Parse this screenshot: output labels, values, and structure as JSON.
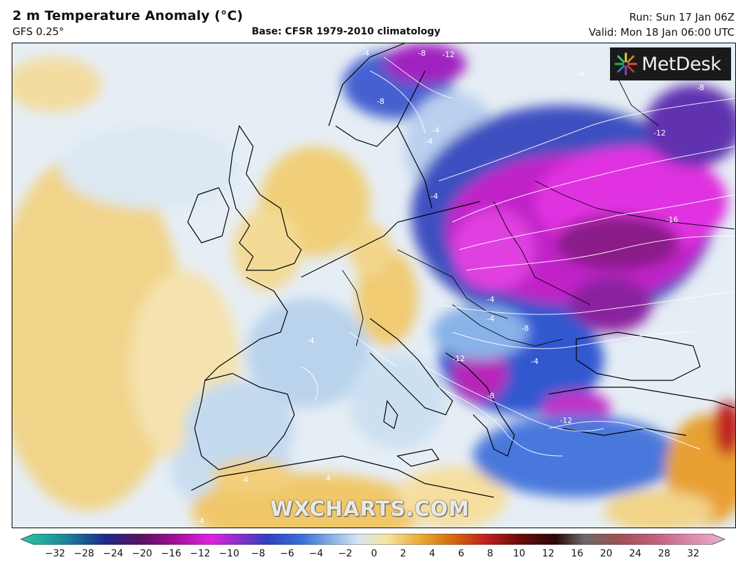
{
  "header": {
    "title": "2 m Temperature Anomaly (°C)",
    "model": "GFS 0.25°",
    "base": "Base: CFSR 1979-2010 climatology",
    "run": "Run: Sun 17 Jan 06Z",
    "valid": "Valid: Mon 18 Jan 06:00 UTC"
  },
  "logo": {
    "text": "MetDesk"
  },
  "watermark": "WXCHARTS.COM",
  "contour_labels": [
    "-4",
    "-8",
    "-12",
    "-4",
    "-8",
    "-8",
    "-4",
    "-4",
    "-4",
    "-12",
    "-16",
    "-4",
    "-4",
    "-8",
    "-4",
    "-12",
    "-8",
    "-12",
    "-4",
    "4",
    "4",
    "-4"
  ],
  "colorbar": {
    "ticks": [
      "−32",
      "−28",
      "−24",
      "−20",
      "−16",
      "−12",
      "−10",
      "−8",
      "−6",
      "−4",
      "−2",
      "0",
      "2",
      "4",
      "6",
      "8",
      "10",
      "12",
      "16",
      "20",
      "24",
      "28",
      "32"
    ],
    "colors": {
      "min": "#2bc8a0",
      "deep_blue": "#1b2a8c",
      "magenta": "#e020e0",
      "cold_blue": "#3a6fd8",
      "light_blue": "#d6e7f5",
      "light_yellow": "#f7e4a0",
      "orange": "#e8a830",
      "red": "#c02020",
      "dark_red": "#6a0a0a",
      "max": "#f0b0d0"
    }
  }
}
